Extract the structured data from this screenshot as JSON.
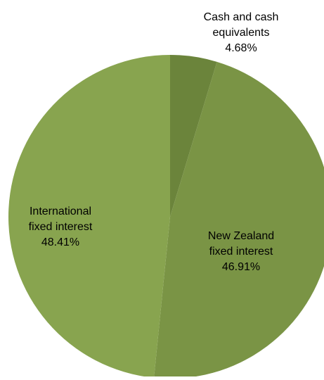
{
  "chart_data": {
    "type": "pie",
    "title": "",
    "slices": [
      {
        "name": "Cash and cash equivalents",
        "label_lines": [
          "Cash and cash",
          "equivalents",
          "4.68%"
        ],
        "value": 4.68,
        "color": "#6b843b"
      },
      {
        "name": "New Zealand fixed interest",
        "label_lines": [
          "New Zealand",
          "fixed interest",
          "46.91%"
        ],
        "value": 46.91,
        "color": "#7a9445"
      },
      {
        "name": "International fixed interest",
        "label_lines": [
          "International",
          "fixed interest",
          "48.41%"
        ],
        "value": 48.41,
        "color": "#88a44f"
      }
    ],
    "start_angle": "12 o'clock",
    "direction": "clockwise",
    "label_color": "#000000",
    "legend": "none",
    "slice_border": "none"
  }
}
